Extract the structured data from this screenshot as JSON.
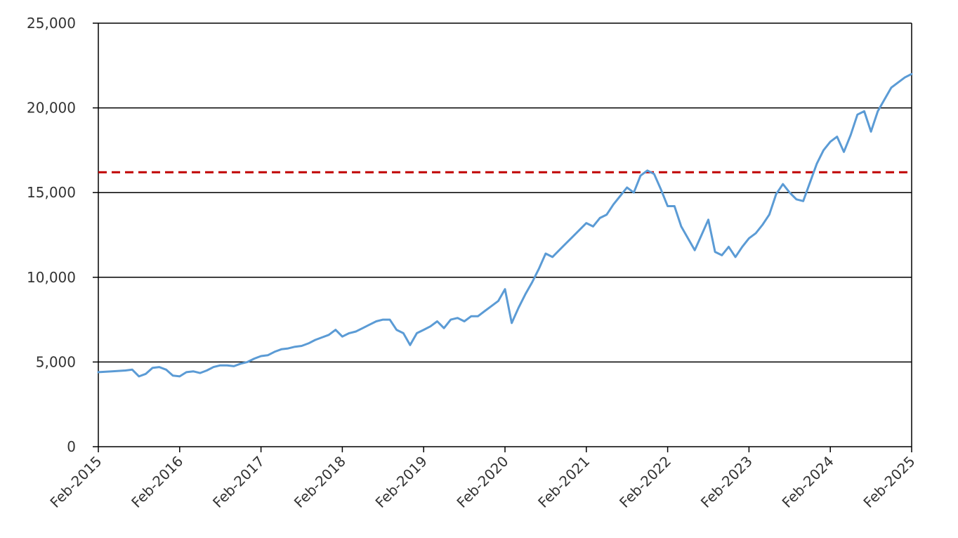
{
  "chart_data": {
    "type": "line",
    "title": "",
    "xlabel": "",
    "ylabel": "",
    "ylim": [
      0,
      25000
    ],
    "y_ticks": [
      0,
      5000,
      10000,
      15000,
      20000,
      25000
    ],
    "y_tick_labels": [
      "0",
      "5,000",
      "10,000",
      "15,000",
      "20,000",
      "25,000"
    ],
    "x_range": [
      "2015-02",
      "2025-02"
    ],
    "x_tick_labels": [
      "Feb-2015",
      "Feb-2016",
      "Feb-2017",
      "Feb-2018",
      "Feb-2019",
      "Feb-2020",
      "Feb-2021",
      "Feb-2022",
      "Feb-2023",
      "Feb-2024",
      "Feb-2025"
    ],
    "grid": "horizontal",
    "reference_line": {
      "value": 16200,
      "style": "dashed",
      "color": "#c00000"
    },
    "series": [
      {
        "color": "#5b9bd5",
        "x": [
          "2015-02",
          "2015-04",
          "2015-06",
          "2015-07",
          "2015-08",
          "2015-09",
          "2015-10",
          "2015-11",
          "2015-12",
          "2016-01",
          "2016-02",
          "2016-03",
          "2016-04",
          "2016-05",
          "2016-06",
          "2016-07",
          "2016-08",
          "2016-09",
          "2016-10",
          "2016-11",
          "2016-12",
          "2017-01",
          "2017-02",
          "2017-03",
          "2017-04",
          "2017-05",
          "2017-06",
          "2017-07",
          "2017-08",
          "2017-09",
          "2017-10",
          "2017-11",
          "2017-12",
          "2018-01",
          "2018-02",
          "2018-03",
          "2018-04",
          "2018-05",
          "2018-06",
          "2018-07",
          "2018-08",
          "2018-09",
          "2018-10",
          "2018-11",
          "2018-12",
          "2019-01",
          "2019-02",
          "2019-03",
          "2019-04",
          "2019-05",
          "2019-06",
          "2019-07",
          "2019-08",
          "2019-09",
          "2019-10",
          "2019-11",
          "2019-12",
          "2020-01",
          "2020-02",
          "2020-03",
          "2020-04",
          "2020-05",
          "2020-06",
          "2020-07",
          "2020-08",
          "2020-09",
          "2020-10",
          "2020-11",
          "2020-12",
          "2021-01",
          "2021-02",
          "2021-03",
          "2021-04",
          "2021-05",
          "2021-06",
          "2021-07",
          "2021-08",
          "2021-09",
          "2021-10",
          "2021-11",
          "2021-12",
          "2022-01",
          "2022-02",
          "2022-03",
          "2022-04",
          "2022-05",
          "2022-06",
          "2022-07",
          "2022-08",
          "2022-09",
          "2022-10",
          "2022-11",
          "2022-12",
          "2023-01",
          "2023-02",
          "2023-03",
          "2023-04",
          "2023-05",
          "2023-06",
          "2023-07",
          "2023-08",
          "2023-09",
          "2023-10",
          "2023-11",
          "2023-12",
          "2024-01",
          "2024-02",
          "2024-03",
          "2024-04",
          "2024-05",
          "2024-06",
          "2024-07",
          "2024-08",
          "2024-09",
          "2024-10",
          "2024-11",
          "2024-12",
          "2025-01",
          "2025-02"
        ],
        "values": [
          4400,
          4450,
          4500,
          4550,
          4150,
          4300,
          4650,
          4700,
          4550,
          4200,
          4150,
          4400,
          4450,
          4350,
          4500,
          4700,
          4800,
          4800,
          4750,
          4900,
          5000,
          5200,
          5350,
          5400,
          5600,
          5750,
          5800,
          5900,
          5950,
          6100,
          6300,
          6450,
          6600,
          6900,
          6500,
          6700,
          6800,
          7000,
          7200,
          7400,
          7500,
          7500,
          6900,
          6700,
          6000,
          6700,
          6900,
          7100,
          7400,
          7000,
          7500,
          7600,
          7400,
          7700,
          7700,
          8000,
          8300,
          8600,
          9300,
          7300,
          8200,
          9000,
          9700,
          10500,
          11400,
          11200,
          11600,
          12000,
          12400,
          12800,
          13200,
          13000,
          13500,
          13700,
          14300,
          14800,
          15300,
          15000,
          16000,
          16300,
          16100,
          15200,
          14200,
          14200,
          13000,
          12300,
          11600,
          12500,
          13400,
          11500,
          11300,
          11800,
          11200,
          11800,
          12300,
          12600,
          13100,
          13700,
          14900,
          15500,
          15000,
          14600,
          14500,
          15600,
          16700,
          17500,
          18000,
          18300,
          17400,
          18400,
          19600,
          19800,
          18600,
          19800,
          20500,
          21200,
          21500,
          21800,
          22000
        ]
      }
    ]
  }
}
